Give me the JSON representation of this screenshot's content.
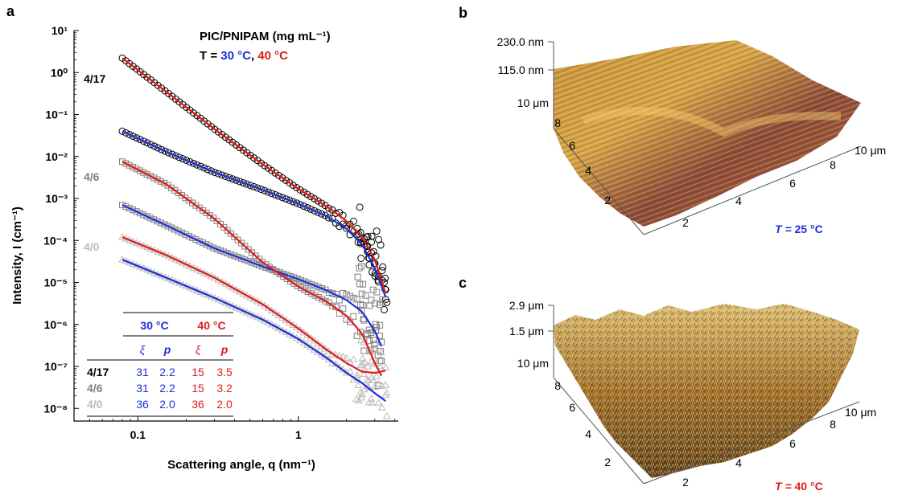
{
  "panels": {
    "a": "a",
    "b": "b",
    "c": "c"
  },
  "colors": {
    "blue": "#1d2fd6",
    "red": "#e01b1b",
    "black": "#000000",
    "gray_dark": "#808080",
    "gray_light": "#bbbbbb"
  },
  "chart_data": [
    {
      "type": "scatter",
      "xscale": "log",
      "yscale": "log",
      "xlim": [
        0.04,
        4.2
      ],
      "ylim": [
        5e-09,
        10
      ],
      "xlabel": "Scattering angle, q (nm⁻¹)",
      "ylabel": "Intensity, I (cm⁻¹)",
      "xticks": [
        "0.1",
        "1"
      ],
      "yticks": [
        "10¹",
        "10⁰",
        "10⁻¹",
        "10⁻²",
        "10⁻³",
        "10⁻⁴",
        "10⁻⁵",
        "10⁻⁶",
        "10⁻⁷",
        "10⁻⁸"
      ],
      "legend_title": "PIC/PNIPAM (mg mL⁻¹)",
      "legend_T_prefix": "T = ",
      "legend_T_blue": "30 °C",
      "legend_T_sep": ", ",
      "legend_T_red": "40 °C",
      "series": [
        {
          "name": "4/17",
          "marker": "circle",
          "color": "#000000",
          "x": [
            0.08,
            0.15,
            0.3,
            0.6,
            1.0,
            1.5,
            2.0,
            2.5,
            3.0,
            3.5
          ],
          "fit_30": [
            0.04,
            0.013,
            0.0042,
            0.0016,
            0.00075,
            0.00038,
            0.00019,
            8e-05,
            2.2e-05,
            4.5e-06
          ],
          "fit_40": [
            2.2,
            0.35,
            0.045,
            0.0065,
            0.0017,
            0.00065,
            0.00029,
            0.00012,
            3.5e-05,
            5.5e-06
          ]
        },
        {
          "name": "4/6",
          "marker": "square",
          "color": "#808080",
          "x": [
            0.08,
            0.15,
            0.3,
            0.6,
            1.0,
            1.5,
            2.0,
            2.5,
            3.0,
            3.3
          ],
          "fit_30": [
            0.0007,
            0.00023,
            6.5e-05,
            2.4e-05,
            1.2e-05,
            6.5e-06,
            3.8e-06,
            2e-06,
            7e-07,
            3e-07
          ],
          "fit_40": [
            0.0075,
            0.0022,
            0.00033,
            3e-05,
            8e-06,
            3.5e-06,
            1.6e-06,
            6e-07,
            1.2e-07,
            6e-08
          ]
        },
        {
          "name": "4/0",
          "marker": "triangle",
          "color": "#bbbbbb",
          "x": [
            0.08,
            0.15,
            0.3,
            0.6,
            1.0,
            1.5,
            2.0,
            2.5,
            3.0,
            3.5
          ],
          "fit_30": [
            3.5e-05,
            1.3e-05,
            4.3e-06,
            1.3e-06,
            4.5e-07,
            1.6e-07,
            7e-08,
            4e-08,
            2.3e-08,
            1.5e-08
          ],
          "fit_40": [
            0.00012,
            4.5e-05,
            1.3e-05,
            3e-06,
            8e-07,
            2.5e-07,
            1.2e-07,
            7.5e-08,
            7e-08,
            8e-08
          ]
        }
      ],
      "table": {
        "col_group_30": "30 °C",
        "col_group_40": "40 °C",
        "sub_xi": "ξ",
        "sub_p": "p",
        "rows": [
          {
            "label": "4/17",
            "xi30": "31",
            "p30": "2.2",
            "xi40": "15",
            "p40": "3.5"
          },
          {
            "label": "4/6",
            "xi30": "31",
            "p30": "2.2",
            "xi40": "15",
            "p40": "3.2"
          },
          {
            "label": "4/0",
            "xi30": "36",
            "p30": "2.0",
            "xi40": "36",
            "p40": "2.0"
          }
        ]
      }
    },
    {
      "type": "surface3d",
      "z_labels": [
        "230.0 nm",
        "115.0 nm"
      ],
      "y_labels": [
        "10 μm",
        "8",
        "6",
        "4",
        "2"
      ],
      "x_labels": [
        "2",
        "4",
        "6",
        "8",
        "10 μm"
      ],
      "temperature_prefix": "T = ",
      "temperature": "25 °C"
    },
    {
      "type": "surface3d",
      "z_labels": [
        "2.9 μm",
        "1.5 μm"
      ],
      "y_labels": [
        "10 μm",
        "8",
        "6",
        "4",
        "2"
      ],
      "x_labels": [
        "2",
        "4",
        "6",
        "8",
        "10 μm"
      ],
      "temperature_prefix": "T = ",
      "temperature": "40 °C"
    }
  ]
}
